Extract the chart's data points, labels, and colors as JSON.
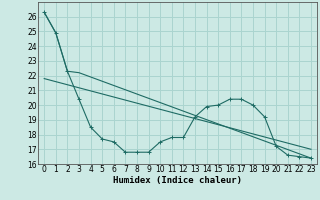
{
  "xlabel": "Humidex (Indice chaleur)",
  "background_color": "#cce9e4",
  "grid_color": "#aad4cf",
  "line_color": "#1e6b64",
  "xlim": [
    -0.5,
    23.5
  ],
  "ylim": [
    16,
    27
  ],
  "yticks": [
    16,
    17,
    18,
    19,
    20,
    21,
    22,
    23,
    24,
    25,
    26
  ],
  "xticks": [
    0,
    1,
    2,
    3,
    4,
    5,
    6,
    7,
    8,
    9,
    10,
    11,
    12,
    13,
    14,
    15,
    16,
    17,
    18,
    19,
    20,
    21,
    22,
    23
  ],
  "series1_x": [
    0,
    1,
    2,
    3,
    4,
    5,
    6,
    7,
    8,
    9,
    10,
    11,
    12,
    13,
    14,
    15,
    16,
    17,
    18,
    19,
    20,
    21,
    22,
    23
  ],
  "series1_y": [
    26.3,
    24.9,
    22.3,
    20.4,
    18.5,
    17.7,
    17.5,
    16.8,
    16.8,
    16.8,
    17.5,
    17.8,
    17.8,
    19.2,
    19.9,
    20.0,
    20.4,
    20.4,
    20.0,
    19.2,
    17.2,
    16.6,
    16.5,
    16.4
  ],
  "series2_x": [
    0,
    1,
    2,
    3,
    23
  ],
  "series2_y": [
    26.3,
    24.9,
    22.3,
    22.2,
    16.4
  ],
  "series3_x": [
    0,
    23
  ],
  "series3_y": [
    21.8,
    17.0
  ],
  "tick_fontsize": 5.5,
  "xlabel_fontsize": 6.5
}
